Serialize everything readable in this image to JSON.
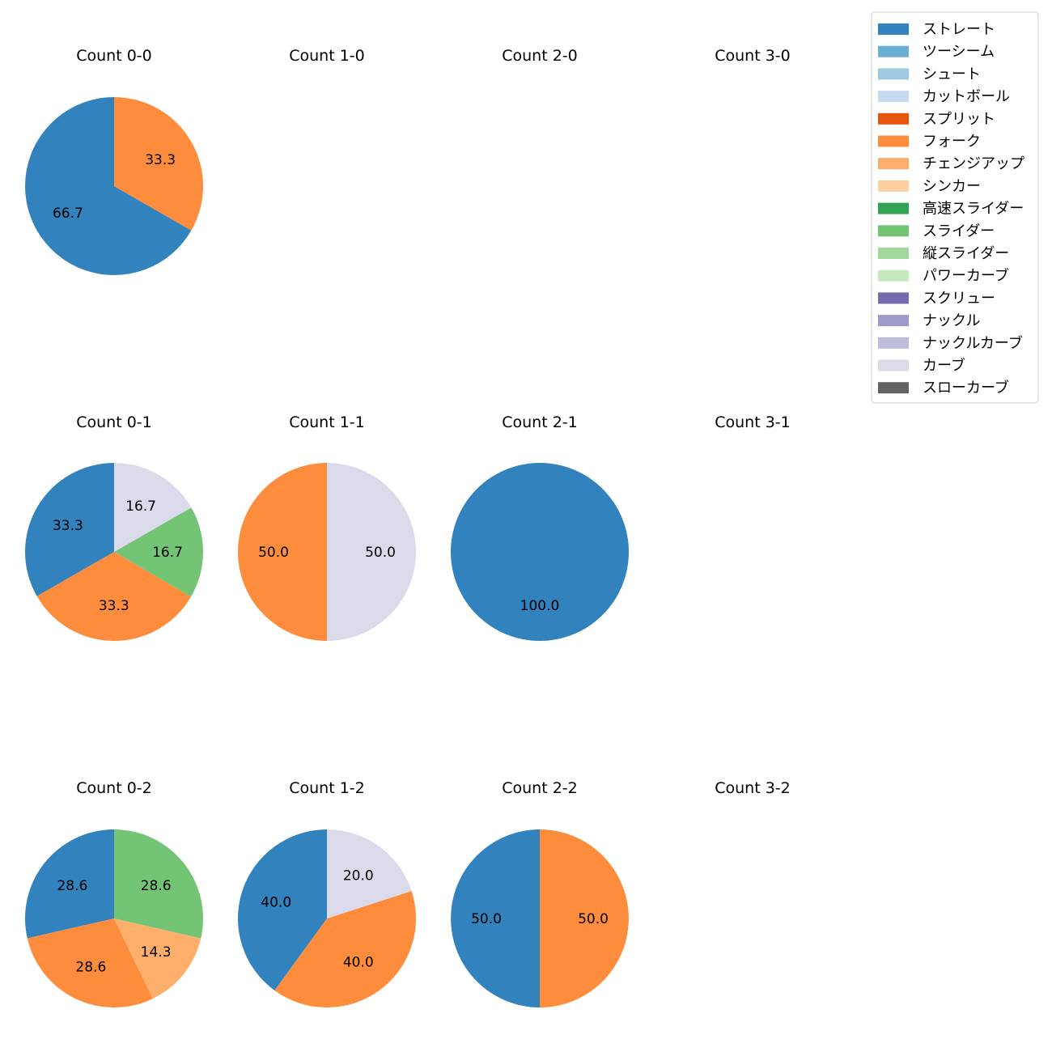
{
  "chart_data": {
    "type": "pie",
    "legend": {
      "placement": "top-right",
      "entries": [
        {
          "label": "ストレート",
          "color": "#3182bd"
        },
        {
          "label": "ツーシーム",
          "color": "#6baed6"
        },
        {
          "label": "シュート",
          "color": "#9ecae1"
        },
        {
          "label": "カットボール",
          "color": "#c6dbef"
        },
        {
          "label": "スプリット",
          "color": "#e6550d"
        },
        {
          "label": "フォーク",
          "color": "#fd8d3c"
        },
        {
          "label": "チェンジアップ",
          "color": "#fdae6b"
        },
        {
          "label": "シンカー",
          "color": "#fdd0a2"
        },
        {
          "label": "高速スライダー",
          "color": "#31a354"
        },
        {
          "label": "スライダー",
          "color": "#74c476"
        },
        {
          "label": "縦スライダー",
          "color": "#a1d99b"
        },
        {
          "label": "パワーカーブ",
          "color": "#c7e9c0"
        },
        {
          "label": "スクリュー",
          "color": "#756bb1"
        },
        {
          "label": "ナックル",
          "color": "#9e9ac8"
        },
        {
          "label": "ナックルカーブ",
          "color": "#bcbddc"
        },
        {
          "label": "カーブ",
          "color": "#dadaeb"
        },
        {
          "label": "スローカーブ",
          "color": "#636363"
        }
      ]
    },
    "panels": [
      {
        "title": "Count 0-0",
        "slices": [
          {
            "pitch": "ストレート",
            "value": 66.7
          },
          {
            "pitch": "フォーク",
            "value": 33.3
          }
        ]
      },
      {
        "title": "Count 1-0",
        "slices": []
      },
      {
        "title": "Count 2-0",
        "slices": []
      },
      {
        "title": "Count 3-0",
        "slices": []
      },
      {
        "title": "Count 0-1",
        "slices": [
          {
            "pitch": "ストレート",
            "value": 33.3
          },
          {
            "pitch": "フォーク",
            "value": 33.3
          },
          {
            "pitch": "スライダー",
            "value": 16.7
          },
          {
            "pitch": "カーブ",
            "value": 16.7
          }
        ]
      },
      {
        "title": "Count 1-1",
        "slices": [
          {
            "pitch": "フォーク",
            "value": 50.0
          },
          {
            "pitch": "カーブ",
            "value": 50.0
          }
        ]
      },
      {
        "title": "Count 2-1",
        "slices": [
          {
            "pitch": "ストレート",
            "value": 100.0
          }
        ]
      },
      {
        "title": "Count 3-1",
        "slices": []
      },
      {
        "title": "Count 0-2",
        "slices": [
          {
            "pitch": "ストレート",
            "value": 28.6
          },
          {
            "pitch": "フォーク",
            "value": 28.6
          },
          {
            "pitch": "チェンジアップ",
            "value": 14.3
          },
          {
            "pitch": "スライダー",
            "value": 28.6
          }
        ]
      },
      {
        "title": "Count 1-2",
        "slices": [
          {
            "pitch": "ストレート",
            "value": 40.0
          },
          {
            "pitch": "フォーク",
            "value": 40.0
          },
          {
            "pitch": "カーブ",
            "value": 20.0
          }
        ]
      },
      {
        "title": "Count 2-2",
        "slices": [
          {
            "pitch": "ストレート",
            "value": 50.0
          },
          {
            "pitch": "フォーク",
            "value": 50.0
          }
        ]
      },
      {
        "title": "Count 3-2",
        "slices": []
      }
    ]
  }
}
